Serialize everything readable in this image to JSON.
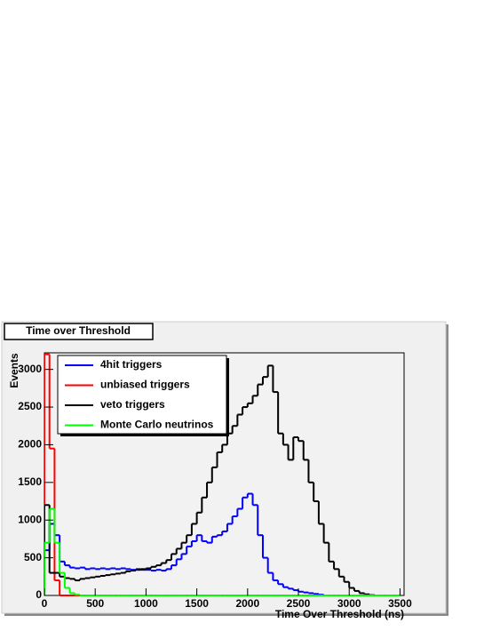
{
  "chart_data": {
    "type": "histogram",
    "title": "Time over Threshold",
    "x_label": "Time Over Threshold (ns)",
    "y_label": "Events",
    "xlim": [
      0,
      3540
    ],
    "ylim": [
      0,
      3220
    ],
    "xticks": [
      0,
      500,
      1000,
      1500,
      2000,
      2500,
      3000,
      3500
    ],
    "yticks": [
      0,
      500,
      1000,
      1500,
      2000,
      2500,
      3000
    ],
    "bins": [
      0,
      50,
      100,
      150,
      200,
      250,
      300,
      350,
      400,
      450,
      500,
      550,
      600,
      650,
      700,
      750,
      800,
      850,
      900,
      950,
      1000,
      1050,
      1100,
      1150,
      1200,
      1250,
      1300,
      1350,
      1400,
      1450,
      1500,
      1550,
      1600,
      1650,
      1700,
      1750,
      1800,
      1850,
      1900,
      1950,
      2000,
      2050,
      2100,
      2150,
      2200,
      2250,
      2300,
      2350,
      2400,
      2450,
      2500,
      2550,
      2600,
      2650,
      2700,
      2750,
      2800,
      2850,
      2900,
      2950,
      3000,
      3050,
      3100,
      3150,
      3200,
      3250,
      3300,
      3350,
      3400,
      3450,
      3500
    ],
    "series": [
      {
        "name": "4hit triggers",
        "color": "#0000ff",
        "values": [
          600,
          950,
          800,
          450,
          400,
          370,
          360,
          370,
          350,
          360,
          350,
          360,
          350,
          360,
          350,
          360,
          350,
          340,
          350,
          340,
          340,
          330,
          340,
          330,
          350,
          400,
          480,
          550,
          650,
          720,
          800,
          720,
          700,
          780,
          800,
          850,
          950,
          1050,
          1150,
          1300,
          1350,
          1200,
          800,
          500,
          300,
          200,
          150,
          110,
          90,
          70,
          50,
          40,
          30,
          20,
          10,
          0,
          0,
          0,
          0,
          0,
          0,
          0,
          0,
          0,
          0,
          0,
          0,
          0,
          0,
          0
        ]
      },
      {
        "name": "unbiased triggers",
        "color": "#ff0000",
        "values": [
          3200,
          1950,
          200,
          0,
          0,
          0,
          0,
          0,
          0,
          0,
          0,
          0,
          0,
          0,
          0,
          0,
          0,
          0,
          0,
          0,
          0,
          0,
          0,
          0,
          0,
          0,
          0,
          0,
          0,
          0,
          0,
          0,
          0,
          0,
          0,
          0,
          0,
          0,
          0,
          0,
          0,
          0,
          0,
          0,
          0,
          0,
          0,
          0,
          0,
          0,
          0,
          0,
          0,
          0,
          0,
          0,
          0,
          0,
          0,
          0,
          0,
          0,
          0,
          0,
          0,
          0,
          0,
          0,
          0,
          0
        ]
      },
      {
        "name": "veto triggers",
        "color": "#000000",
        "values": [
          1200,
          300,
          300,
          250,
          230,
          220,
          200,
          220,
          230,
          240,
          250,
          260,
          270,
          280,
          290,
          300,
          320,
          330,
          340,
          350,
          360,
          380,
          400,
          430,
          470,
          550,
          620,
          700,
          800,
          950,
          1100,
          1300,
          1500,
          1700,
          1900,
          2000,
          2150,
          2250,
          2400,
          2500,
          2550,
          2650,
          2800,
          2900,
          3050,
          2700,
          2150,
          2000,
          1800,
          2100,
          2050,
          1800,
          1500,
          1250,
          950,
          700,
          450,
          350,
          250,
          180,
          100,
          60,
          30,
          15,
          5,
          0,
          0,
          0,
          0,
          0
        ]
      },
      {
        "name": "Monte Carlo neutrinos",
        "color": "#00ff00",
        "values": [
          700,
          1150,
          700,
          300,
          100,
          30,
          10,
          0,
          0,
          0,
          0,
          0,
          0,
          0,
          0,
          0,
          0,
          0,
          0,
          0,
          0,
          0,
          0,
          0,
          0,
          0,
          0,
          0,
          0,
          0,
          0,
          0,
          0,
          0,
          0,
          0,
          0,
          0,
          0,
          0,
          0,
          0,
          0,
          0,
          0,
          0,
          0,
          0,
          0,
          0,
          0,
          0,
          0,
          0,
          0,
          0,
          0,
          0,
          0,
          0,
          0,
          0,
          0,
          0,
          0,
          0,
          0,
          0,
          0,
          0
        ]
      }
    ]
  }
}
